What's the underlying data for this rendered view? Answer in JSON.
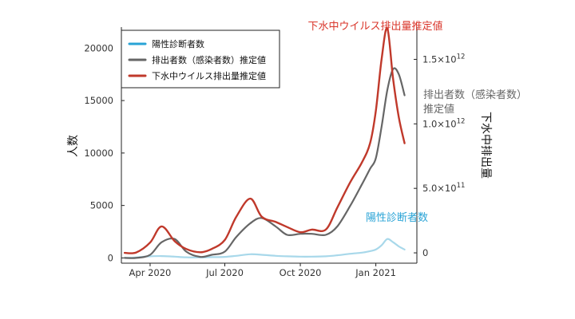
{
  "chart_data": {
    "type": "line",
    "x": [
      "2020-03-01",
      "2020-03-15",
      "2020-04-01",
      "2020-04-15",
      "2020-05-01",
      "2020-05-15",
      "2020-06-01",
      "2020-06-15",
      "2020-07-01",
      "2020-07-15",
      "2020-08-01",
      "2020-08-15",
      "2020-09-01",
      "2020-09-15",
      "2020-10-01",
      "2020-10-15",
      "2020-11-01",
      "2020-11-15",
      "2020-12-01",
      "2020-12-15",
      "2020-12-25",
      "2021-01-01",
      "2021-01-08",
      "2021-01-15",
      "2021-01-22",
      "2021-01-29",
      "2021-02-05"
    ],
    "x_ticks": [
      {
        "value": "2020-04-01",
        "label": "Apr 2020"
      },
      {
        "value": "2020-07-01",
        "label": "Jul 2020"
      },
      {
        "value": "2020-10-01",
        "label": "Oct 2020"
      },
      {
        "value": "2021-01-01",
        "label": "Jan 2021"
      }
    ],
    "xlim": [
      "2020-02-26",
      "2021-02-20"
    ],
    "series": [
      {
        "name": "陽性診断者数",
        "color": "#a8d8ea",
        "axis": "left",
        "values": [
          0,
          50,
          150,
          180,
          120,
          60,
          50,
          80,
          100,
          200,
          350,
          300,
          200,
          150,
          120,
          120,
          150,
          250,
          400,
          500,
          650,
          800,
          1200,
          1800,
          1500,
          1100,
          800
        ]
      },
      {
        "name": "排出者数（感染者数）推定値",
        "color": "#666666",
        "axis": "left",
        "values": [
          0,
          0,
          300,
          1500,
          1800,
          600,
          100,
          300,
          600,
          2000,
          3300,
          3800,
          3000,
          2200,
          2300,
          2300,
          2200,
          3000,
          5000,
          7000,
          8500,
          9500,
          12500,
          16000,
          18000,
          17500,
          15500
        ]
      },
      {
        "name": "下水中ウイルス排出量推定値",
        "color": "#c0392b",
        "axis": "right",
        "values": [
          0,
          3000000000.0,
          80000000000.0,
          205000000000.0,
          90000000000.0,
          30000000000.0,
          5000000000.0,
          30000000000.0,
          100000000000.0,
          280000000000.0,
          420000000000.0,
          280000000000.0,
          240000000000.0,
          200000000000.0,
          160000000000.0,
          180000000000.0,
          180000000000.0,
          350000000000.0,
          550000000000.0,
          700000000000.0,
          850000000000.0,
          1100000000000.0,
          1500000000000.0,
          1740000000000.0,
          1350000000000.0,
          1050000000000.0,
          850000000000.0
        ]
      }
    ],
    "y_left": {
      "label": "人数",
      "lim": [
        -500,
        22000
      ],
      "ticks": [
        0,
        5000,
        10000,
        15000,
        20000
      ],
      "tick_labels": [
        "0",
        "5000",
        "10000",
        "15000",
        "20000"
      ]
    },
    "y_right": {
      "label": "下水中排出量",
      "lim": [
        -80000000000.0,
        1750000000000.0
      ],
      "ticks": [
        0,
        500000000000.0,
        1000000000000.0,
        1500000000000.0
      ],
      "tick_labels": [
        {
          "mantissa": "0",
          "exp": ""
        },
        {
          "mantissa": "5.0×10",
          "exp": "11"
        },
        {
          "mantissa": "1.0×10",
          "exp": "12"
        },
        {
          "mantissa": "1.5×10",
          "exp": "12"
        }
      ]
    },
    "legend": {
      "position": "top-left",
      "entries": [
        "陽性診断者数",
        "排出者数（感染者数）推定値",
        "下水中ウイルス排出量推定値"
      ]
    },
    "annotations": [
      {
        "text": "下水中ウイルス排出量推定値",
        "color": "#d9352a",
        "series": "下水中ウイルス排出量推定値"
      },
      {
        "lines": [
          "排出者数（感染者数）",
          "推定値"
        ],
        "color": "#666666",
        "series": "排出者数（感染者数）推定値"
      },
      {
        "text": "陽性診断者数",
        "color": "#29a3d6",
        "series": "陽性診断者数"
      }
    ],
    "grid": false
  }
}
